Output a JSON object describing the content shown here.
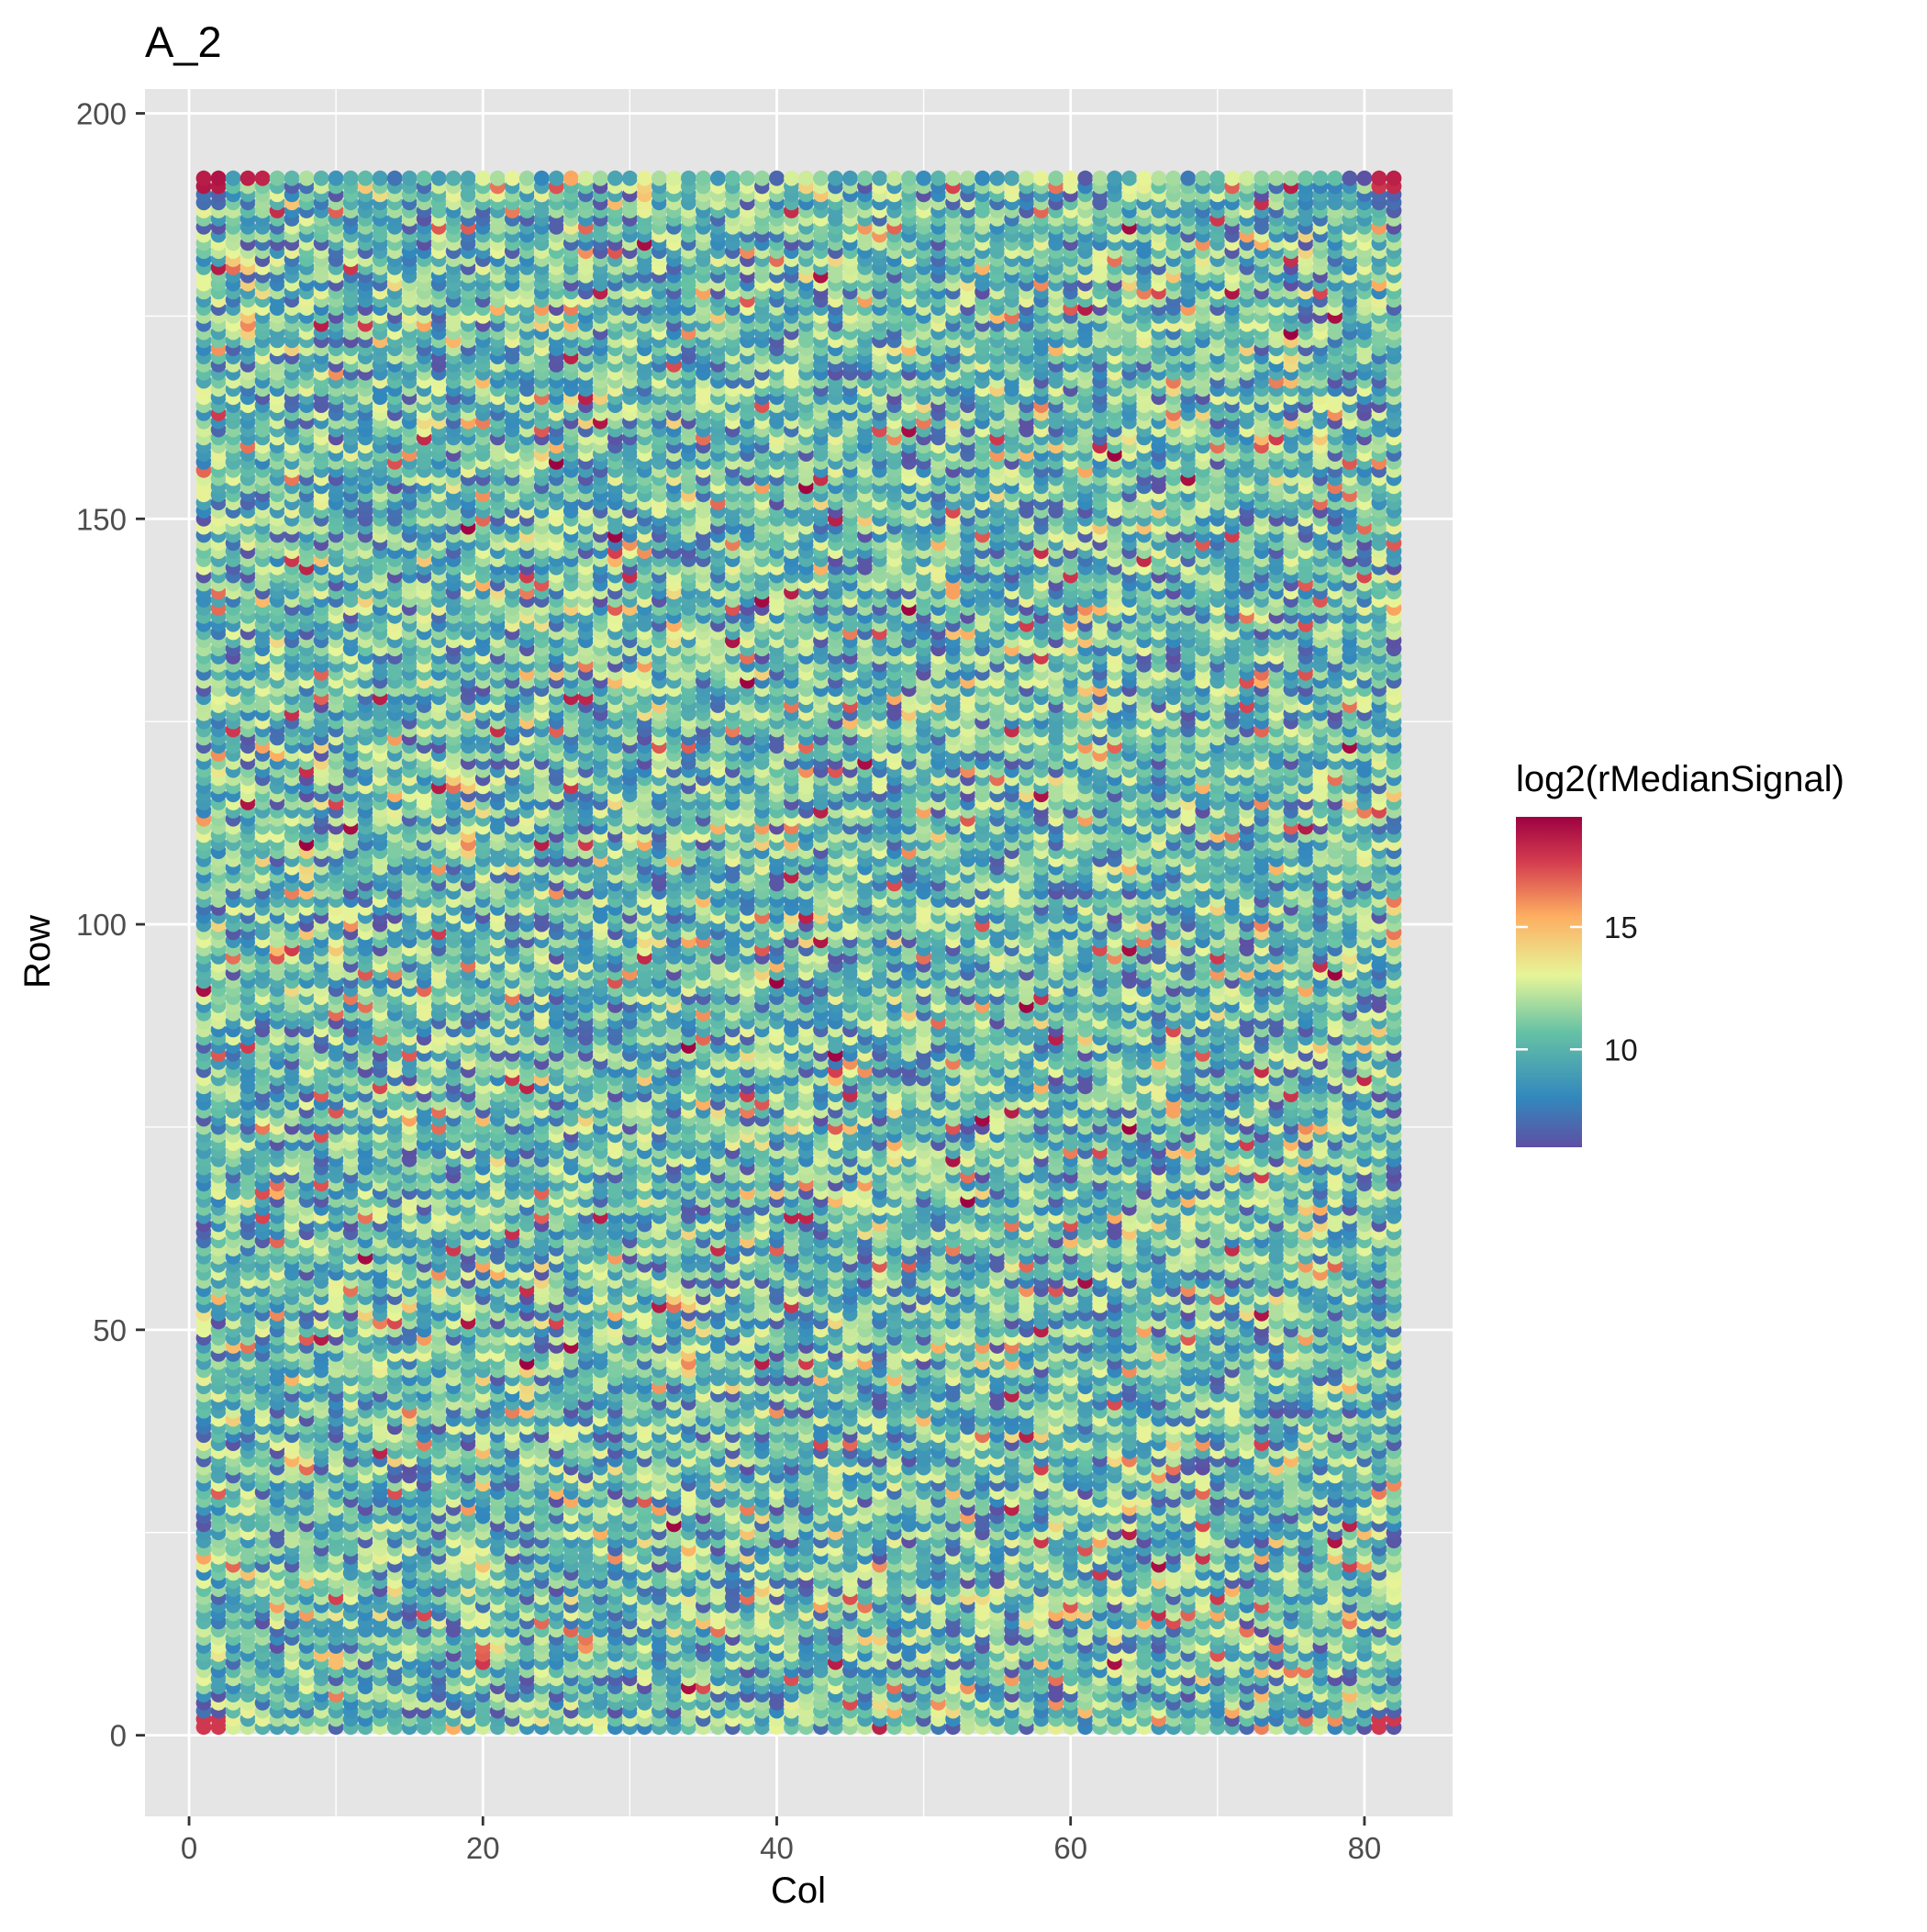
{
  "chart_data": {
    "type": "scatter",
    "title": "A_2",
    "xlabel": "Col",
    "ylabel": "Row",
    "xlim": [
      -3,
      86
    ],
    "ylim": [
      -10,
      203
    ],
    "x_ticks": [
      0,
      20,
      40,
      60,
      80
    ],
    "y_ticks": [
      0,
      50,
      100,
      150,
      200
    ],
    "grid": true,
    "panel_background": "#e5e5e5",
    "grid_color": "#ffffff",
    "legend": {
      "title": "log2(rMedianSignal)",
      "position": "right",
      "range": [
        6,
        19.5
      ],
      "ticks": [
        10,
        15
      ],
      "palette": "Spectral (reversed)"
    },
    "points_summary": {
      "col_range": [
        1,
        82
      ],
      "row_range": [
        1,
        192
      ],
      "description_value_range": [
        6,
        19.5
      ]
    },
    "corner_highlights": [
      {
        "corner": "top-left",
        "values_hint": "high (red)"
      },
      {
        "corner": "top-right",
        "values_hint": "high (red)"
      },
      {
        "corner": "bottom-left",
        "values_hint": "mixed red/blue"
      },
      {
        "corner": "bottom-right",
        "values_hint": "mixed blue/red"
      }
    ],
    "colors": {
      "low": "#5e4fa2",
      "mid_low": "#3288bd",
      "mid": "#66c2a5",
      "mid_high": "#e6f598",
      "high_mid": "#fdae61",
      "high": "#d53e4f",
      "max": "#9e0142"
    }
  }
}
